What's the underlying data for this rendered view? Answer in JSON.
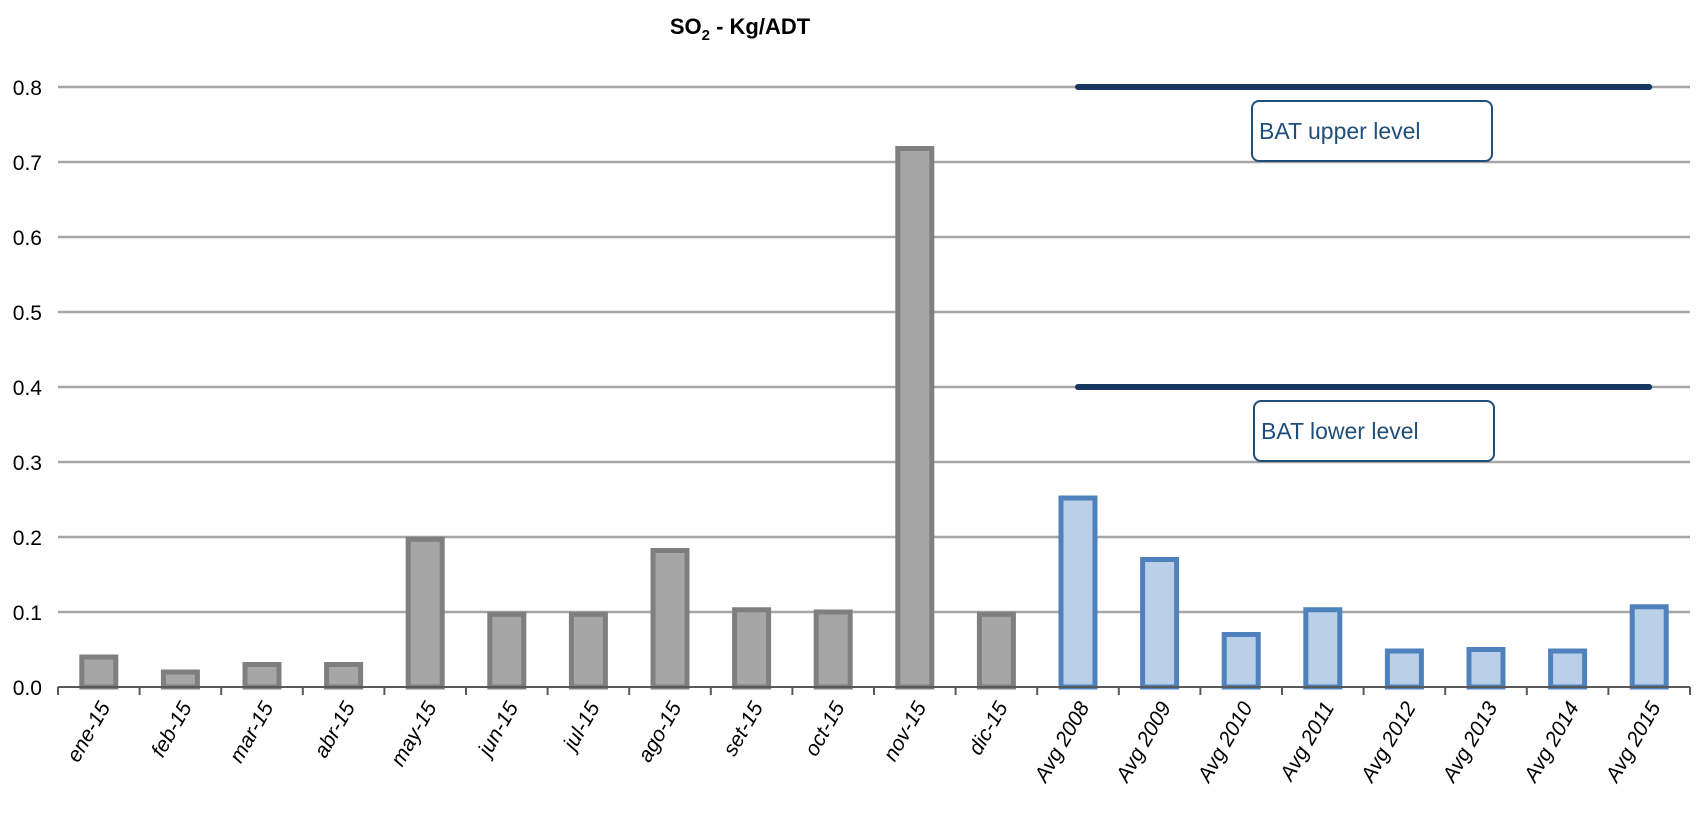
{
  "chart_data": {
    "type": "bar",
    "title": {
      "main": "SO",
      "subscript": "2",
      "rest": " - Kg/ADT"
    },
    "xlabel": "",
    "ylabel": "",
    "ylim": [
      0,
      0.8
    ],
    "yticks": [
      "0.0",
      "0.1",
      "0.2",
      "0.3",
      "0.4",
      "0.5",
      "0.6",
      "0.7",
      "0.8"
    ],
    "grid": true,
    "categories": [
      "ene-15",
      "feb-15",
      "mar-15",
      "abr-15",
      "may-15",
      "jun-15",
      "jul-15",
      "ago-15",
      "set-15",
      "oct-15",
      "nov-15",
      "dic-15",
      "Avg 2008",
      "Avg 2009",
      "Avg 2010",
      "Avg 2011",
      "Avg 2012",
      "Avg 2013",
      "Avg 2014",
      "Avg 2015"
    ],
    "values": [
      0.04,
      0.02,
      0.03,
      0.03,
      0.197,
      0.097,
      0.097,
      0.182,
      0.103,
      0.1,
      0.718,
      0.097,
      0.252,
      0.17,
      0.07,
      0.103,
      0.048,
      0.05,
      0.048,
      0.107
    ],
    "groups": [
      {
        "name": "monthly",
        "from": 0,
        "to": 11,
        "fill": "#a6a6a6",
        "stroke": "#7f7f7f"
      },
      {
        "name": "annual",
        "from": 12,
        "to": 19,
        "fill": "#b9d0e8",
        "stroke": "#4f81bd"
      }
    ],
    "reference_lines": [
      {
        "label": "BAT upper level",
        "value": 0.8,
        "from_category": "Avg 2008",
        "to_category": "Avg 2015",
        "color": "#17375e"
      },
      {
        "label": "BAT lower level",
        "value": 0.4,
        "from_category": "Avg 2008",
        "to_category": "Avg 2015",
        "color": "#17375e"
      }
    ],
    "colors": {
      "grid": "#a6a6a6",
      "axis": "#595959",
      "label_text": "#1f4e79",
      "label_border": "#1f4e79"
    }
  }
}
